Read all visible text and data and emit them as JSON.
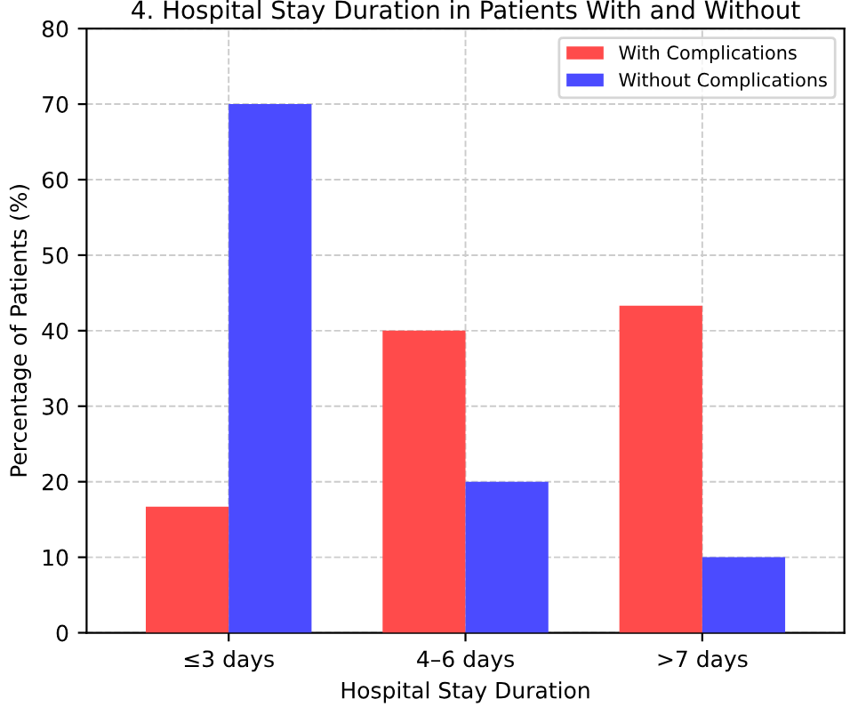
{
  "chart_data": {
    "type": "bar",
    "title": "4. Hospital Stay Duration in Patients With and Without",
    "xlabel": "Hospital Stay Duration",
    "ylabel": "Percentage of Patients (%)",
    "categories": [
      "≤3 days",
      "4–6 days",
      ">7 days"
    ],
    "series": [
      {
        "name": "With Complications",
        "color": "#ff4b4b",
        "values": [
          16.7,
          40,
          43.3
        ]
      },
      {
        "name": "Without Complications",
        "color": "#4b4bff",
        "values": [
          70,
          20,
          10
        ]
      }
    ],
    "ylim": [
      0,
      80
    ],
    "yticks": [
      0,
      10,
      20,
      30,
      40,
      50,
      60,
      70,
      80
    ],
    "grid": true,
    "legend": "top right"
  }
}
